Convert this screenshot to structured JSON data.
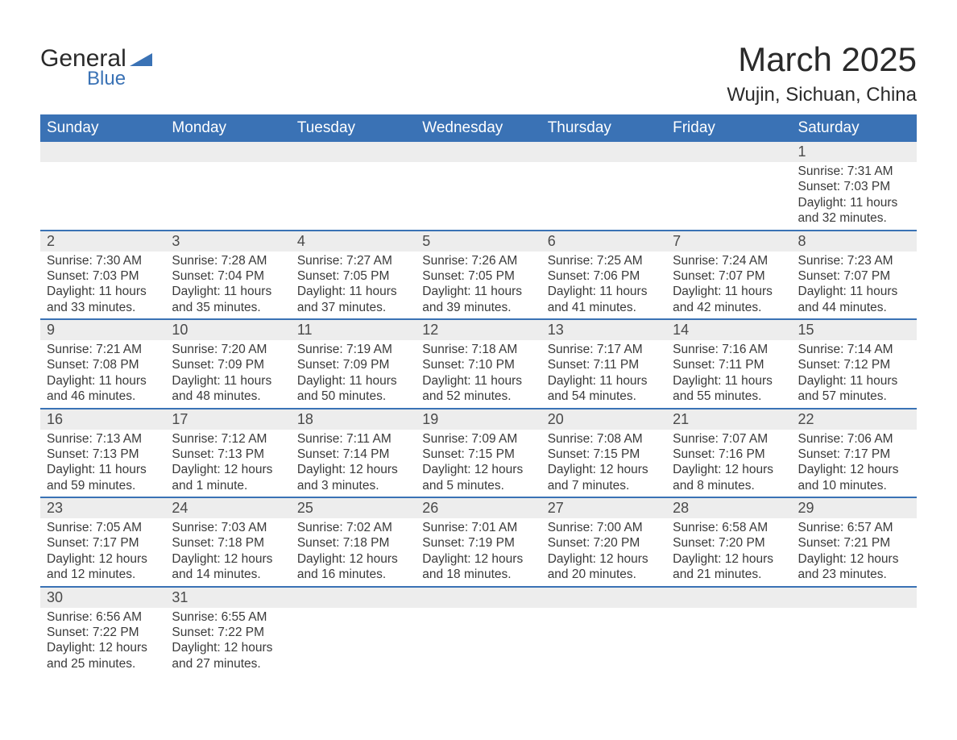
{
  "logo": {
    "text_general": "General",
    "text_blue": "Blue",
    "mark_color": "#3a72b5"
  },
  "title": {
    "month": "March 2025",
    "location": "Wujin, Sichuan, China"
  },
  "colors": {
    "header_bg": "#3a72b5",
    "header_text": "#ffffff",
    "daynum_bg": "#ededed",
    "row_divider": "#3a72b5",
    "body_text": "#3a3a3a",
    "page_bg": "#ffffff"
  },
  "typography": {
    "month_title_fontsize": 42,
    "location_fontsize": 24,
    "weekday_fontsize": 19,
    "daynum_fontsize": 18,
    "detail_fontsize": 15.5
  },
  "weekdays": [
    "Sunday",
    "Monday",
    "Tuesday",
    "Wednesday",
    "Thursday",
    "Friday",
    "Saturday"
  ],
  "weeks": [
    [
      null,
      null,
      null,
      null,
      null,
      null,
      {
        "n": "1",
        "sunrise": "Sunrise: 7:31 AM",
        "sunset": "Sunset: 7:03 PM",
        "dl1": "Daylight: 11 hours",
        "dl2": "and 32 minutes."
      }
    ],
    [
      {
        "n": "2",
        "sunrise": "Sunrise: 7:30 AM",
        "sunset": "Sunset: 7:03 PM",
        "dl1": "Daylight: 11 hours",
        "dl2": "and 33 minutes."
      },
      {
        "n": "3",
        "sunrise": "Sunrise: 7:28 AM",
        "sunset": "Sunset: 7:04 PM",
        "dl1": "Daylight: 11 hours",
        "dl2": "and 35 minutes."
      },
      {
        "n": "4",
        "sunrise": "Sunrise: 7:27 AM",
        "sunset": "Sunset: 7:05 PM",
        "dl1": "Daylight: 11 hours",
        "dl2": "and 37 minutes."
      },
      {
        "n": "5",
        "sunrise": "Sunrise: 7:26 AM",
        "sunset": "Sunset: 7:05 PM",
        "dl1": "Daylight: 11 hours",
        "dl2": "and 39 minutes."
      },
      {
        "n": "6",
        "sunrise": "Sunrise: 7:25 AM",
        "sunset": "Sunset: 7:06 PM",
        "dl1": "Daylight: 11 hours",
        "dl2": "and 41 minutes."
      },
      {
        "n": "7",
        "sunrise": "Sunrise: 7:24 AM",
        "sunset": "Sunset: 7:07 PM",
        "dl1": "Daylight: 11 hours",
        "dl2": "and 42 minutes."
      },
      {
        "n": "8",
        "sunrise": "Sunrise: 7:23 AM",
        "sunset": "Sunset: 7:07 PM",
        "dl1": "Daylight: 11 hours",
        "dl2": "and 44 minutes."
      }
    ],
    [
      {
        "n": "9",
        "sunrise": "Sunrise: 7:21 AM",
        "sunset": "Sunset: 7:08 PM",
        "dl1": "Daylight: 11 hours",
        "dl2": "and 46 minutes."
      },
      {
        "n": "10",
        "sunrise": "Sunrise: 7:20 AM",
        "sunset": "Sunset: 7:09 PM",
        "dl1": "Daylight: 11 hours",
        "dl2": "and 48 minutes."
      },
      {
        "n": "11",
        "sunrise": "Sunrise: 7:19 AM",
        "sunset": "Sunset: 7:09 PM",
        "dl1": "Daylight: 11 hours",
        "dl2": "and 50 minutes."
      },
      {
        "n": "12",
        "sunrise": "Sunrise: 7:18 AM",
        "sunset": "Sunset: 7:10 PM",
        "dl1": "Daylight: 11 hours",
        "dl2": "and 52 minutes."
      },
      {
        "n": "13",
        "sunrise": "Sunrise: 7:17 AM",
        "sunset": "Sunset: 7:11 PM",
        "dl1": "Daylight: 11 hours",
        "dl2": "and 54 minutes."
      },
      {
        "n": "14",
        "sunrise": "Sunrise: 7:16 AM",
        "sunset": "Sunset: 7:11 PM",
        "dl1": "Daylight: 11 hours",
        "dl2": "and 55 minutes."
      },
      {
        "n": "15",
        "sunrise": "Sunrise: 7:14 AM",
        "sunset": "Sunset: 7:12 PM",
        "dl1": "Daylight: 11 hours",
        "dl2": "and 57 minutes."
      }
    ],
    [
      {
        "n": "16",
        "sunrise": "Sunrise: 7:13 AM",
        "sunset": "Sunset: 7:13 PM",
        "dl1": "Daylight: 11 hours",
        "dl2": "and 59 minutes."
      },
      {
        "n": "17",
        "sunrise": "Sunrise: 7:12 AM",
        "sunset": "Sunset: 7:13 PM",
        "dl1": "Daylight: 12 hours",
        "dl2": "and 1 minute."
      },
      {
        "n": "18",
        "sunrise": "Sunrise: 7:11 AM",
        "sunset": "Sunset: 7:14 PM",
        "dl1": "Daylight: 12 hours",
        "dl2": "and 3 minutes."
      },
      {
        "n": "19",
        "sunrise": "Sunrise: 7:09 AM",
        "sunset": "Sunset: 7:15 PM",
        "dl1": "Daylight: 12 hours",
        "dl2": "and 5 minutes."
      },
      {
        "n": "20",
        "sunrise": "Sunrise: 7:08 AM",
        "sunset": "Sunset: 7:15 PM",
        "dl1": "Daylight: 12 hours",
        "dl2": "and 7 minutes."
      },
      {
        "n": "21",
        "sunrise": "Sunrise: 7:07 AM",
        "sunset": "Sunset: 7:16 PM",
        "dl1": "Daylight: 12 hours",
        "dl2": "and 8 minutes."
      },
      {
        "n": "22",
        "sunrise": "Sunrise: 7:06 AM",
        "sunset": "Sunset: 7:17 PM",
        "dl1": "Daylight: 12 hours",
        "dl2": "and 10 minutes."
      }
    ],
    [
      {
        "n": "23",
        "sunrise": "Sunrise: 7:05 AM",
        "sunset": "Sunset: 7:17 PM",
        "dl1": "Daylight: 12 hours",
        "dl2": "and 12 minutes."
      },
      {
        "n": "24",
        "sunrise": "Sunrise: 7:03 AM",
        "sunset": "Sunset: 7:18 PM",
        "dl1": "Daylight: 12 hours",
        "dl2": "and 14 minutes."
      },
      {
        "n": "25",
        "sunrise": "Sunrise: 7:02 AM",
        "sunset": "Sunset: 7:18 PM",
        "dl1": "Daylight: 12 hours",
        "dl2": "and 16 minutes."
      },
      {
        "n": "26",
        "sunrise": "Sunrise: 7:01 AM",
        "sunset": "Sunset: 7:19 PM",
        "dl1": "Daylight: 12 hours",
        "dl2": "and 18 minutes."
      },
      {
        "n": "27",
        "sunrise": "Sunrise: 7:00 AM",
        "sunset": "Sunset: 7:20 PM",
        "dl1": "Daylight: 12 hours",
        "dl2": "and 20 minutes."
      },
      {
        "n": "28",
        "sunrise": "Sunrise: 6:58 AM",
        "sunset": "Sunset: 7:20 PM",
        "dl1": "Daylight: 12 hours",
        "dl2": "and 21 minutes."
      },
      {
        "n": "29",
        "sunrise": "Sunrise: 6:57 AM",
        "sunset": "Sunset: 7:21 PM",
        "dl1": "Daylight: 12 hours",
        "dl2": "and 23 minutes."
      }
    ],
    [
      {
        "n": "30",
        "sunrise": "Sunrise: 6:56 AM",
        "sunset": "Sunset: 7:22 PM",
        "dl1": "Daylight: 12 hours",
        "dl2": "and 25 minutes."
      },
      {
        "n": "31",
        "sunrise": "Sunrise: 6:55 AM",
        "sunset": "Sunset: 7:22 PM",
        "dl1": "Daylight: 12 hours",
        "dl2": "and 27 minutes."
      },
      null,
      null,
      null,
      null,
      null
    ]
  ]
}
